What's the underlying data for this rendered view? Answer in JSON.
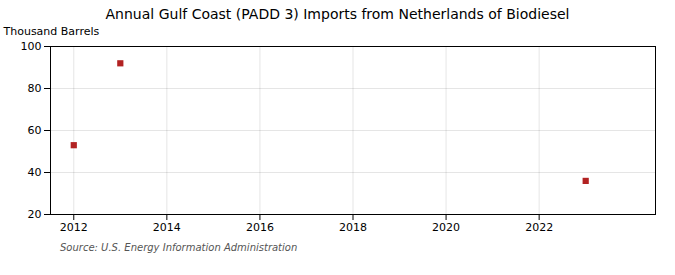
{
  "chart_data": {
    "type": "scatter",
    "title": "Annual Gulf Coast (PADD 3) Imports from Netherlands of Biodiesel",
    "ylabel": "Thousand Barrels",
    "source": "Source: U.S. Energy Information Administration",
    "x": [
      2012,
      2013,
      2023
    ],
    "values": [
      53,
      92,
      36
    ],
    "color": "#b22222",
    "marker": "square",
    "xlim": [
      2011.5,
      2024.5
    ],
    "ylim": [
      20,
      100
    ],
    "xticks": [
      2012,
      2014,
      2016,
      2018,
      2020,
      2022
    ],
    "yticks": [
      20,
      40,
      60,
      80,
      100
    ],
    "grid": true
  }
}
